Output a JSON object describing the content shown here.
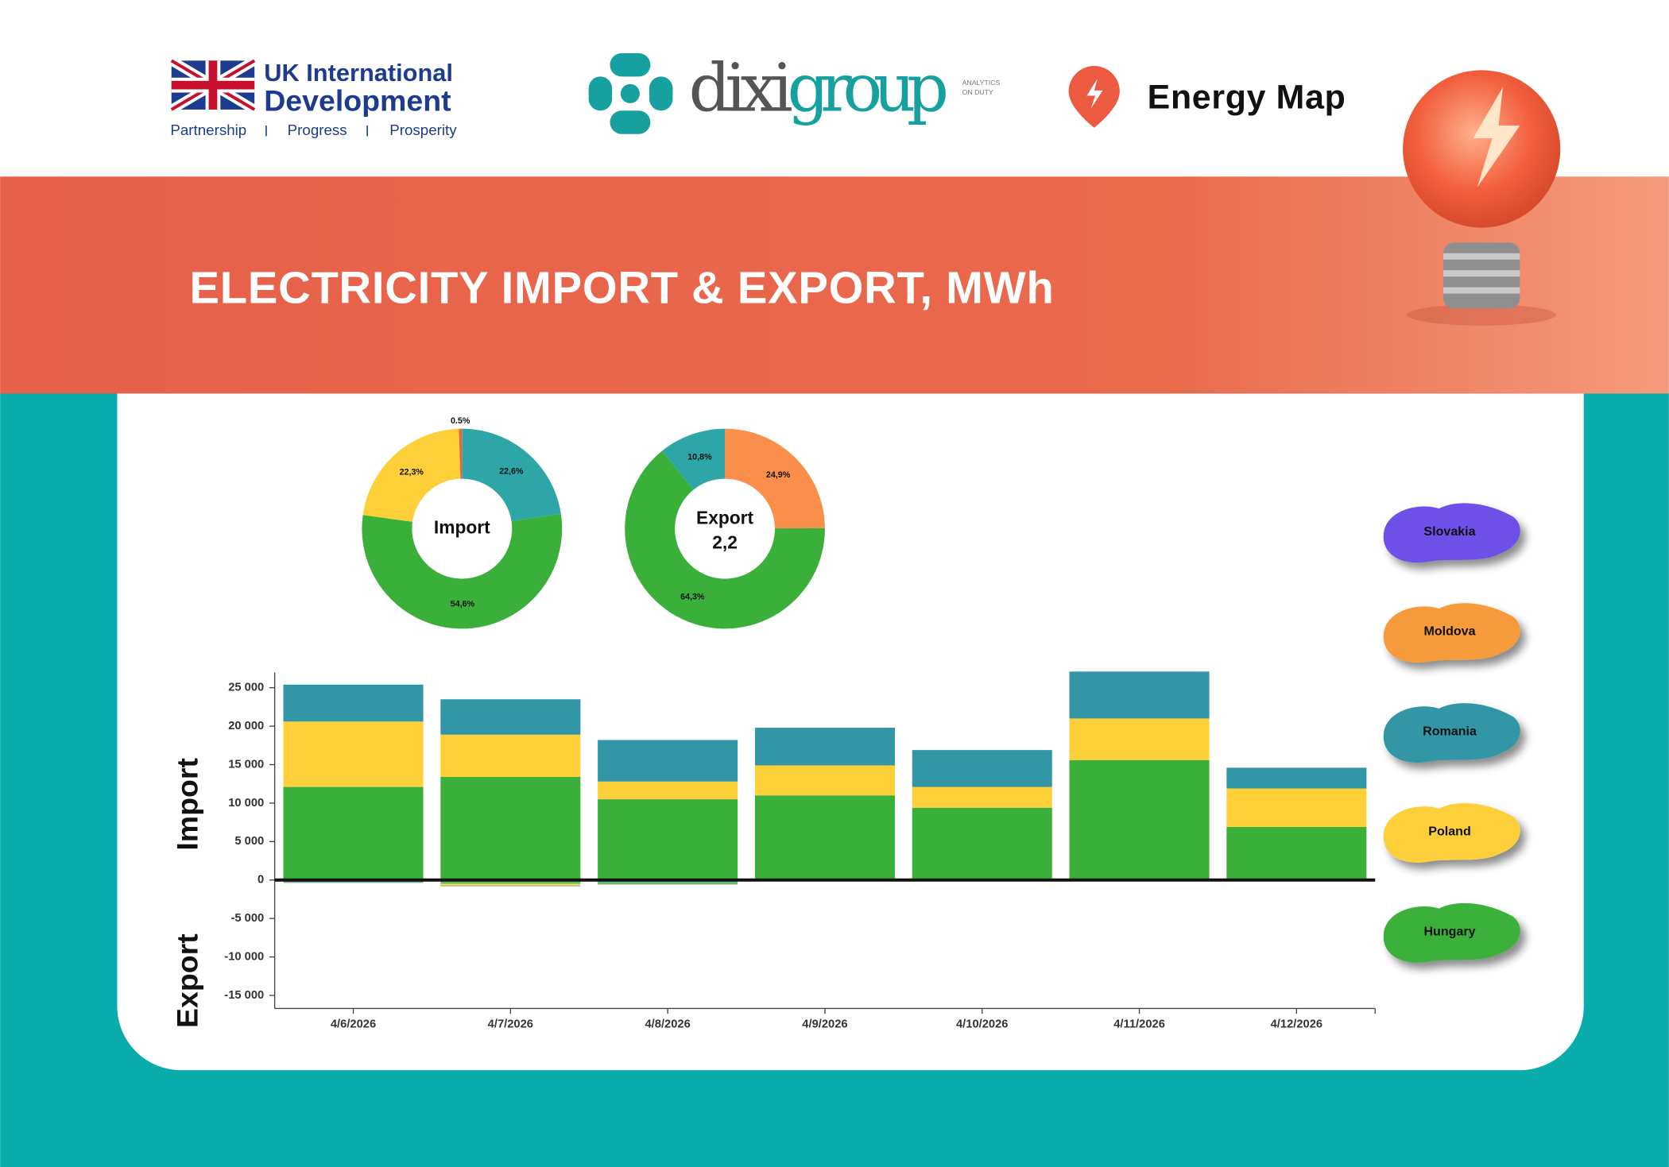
{
  "header": {
    "partner_line1": "UK International",
    "partner_line2": "Development",
    "motto": [
      "Partnership",
      "Progress",
      "Prosperity"
    ],
    "brand_part1": "dixi",
    "brand_part2": "group",
    "brand_tagline": [
      "ANALYTICS",
      "ON DUTY"
    ],
    "product": "Energy Map",
    "title": "ELECTRICITY IMPORT & EXPORT, MWh"
  },
  "chart_data": [
    {
      "type": "pie",
      "center_label": "Import",
      "values": [
        22.6,
        54.6,
        22.3,
        0.5
      ],
      "value_labels": [
        "22,6%",
        "54,6%",
        "22,3%",
        "0.5%"
      ],
      "colors": [
        "#2ea6a8",
        "#3ab03a",
        "#fdd03a",
        "#e8643c"
      ]
    },
    {
      "type": "pie",
      "center_label": "Export",
      "center_sublabel": "2,2",
      "values": [
        24.9,
        64.3,
        10.8
      ],
      "value_labels": [
        "24,9%",
        "64,3%",
        "10,8%"
      ],
      "colors": [
        "#f98f4a",
        "#3ab03a",
        "#2ea6a8"
      ]
    },
    {
      "type": "bar",
      "stacked": true,
      "ylabel_import": "Import",
      "ylabel_export": "Export",
      "categories": [
        "4/6/2026",
        "4/7/2026",
        "4/8/2026",
        "4/9/2026",
        "4/10/2026",
        "4/11/2026",
        "4/12/2026"
      ],
      "series": [
        {
          "name": "Hungary",
          "color": "#3ab03a",
          "values": [
            12100,
            13400,
            10500,
            11000,
            9400,
            15600,
            6900
          ],
          "export_values": [
            -260,
            -510,
            -390,
            0,
            0,
            0,
            0
          ]
        },
        {
          "name": "Poland",
          "color": "#fdd03a",
          "values": [
            8500,
            5500,
            2300,
            3900,
            2700,
            5400,
            5000
          ],
          "export_values": [
            0,
            -200,
            0,
            0,
            0,
            0,
            0
          ]
        },
        {
          "name": "Romania",
          "color": "#3396a6",
          "values": [
            4800,
            4600,
            5400,
            4900,
            4800,
            6100,
            2700
          ],
          "export_values": [
            -100,
            -60,
            -150,
            0,
            0,
            0,
            0
          ]
        },
        {
          "name": "Slovakia",
          "color": "#6e50e8",
          "values": [
            0,
            0,
            0,
            0,
            0,
            0,
            0
          ],
          "export_values": [
            0,
            0,
            0,
            0,
            0,
            0,
            0
          ]
        },
        {
          "name": "Moldova",
          "color": "#f79a3a",
          "values": [
            0,
            0,
            0,
            0,
            0,
            0,
            0
          ],
          "export_values": [
            -40,
            -80,
            -60,
            0,
            0,
            0,
            0
          ]
        }
      ],
      "ylim": [
        -16700,
        27000
      ],
      "yticks": [
        {
          "value": 25000,
          "label": "25 000"
        },
        {
          "value": 20000,
          "label": "20 000"
        },
        {
          "value": 15000,
          "label": "15 000"
        },
        {
          "value": 10000,
          "label": "10 000"
        },
        {
          "value": 5000,
          "label": "5 000"
        },
        0,
        {
          "value": -5000,
          "label": "-5 000"
        },
        {
          "value": -10000,
          "label": "-10 000"
        },
        {
          "value": -15000,
          "label": "-15 000"
        }
      ]
    }
  ]
}
